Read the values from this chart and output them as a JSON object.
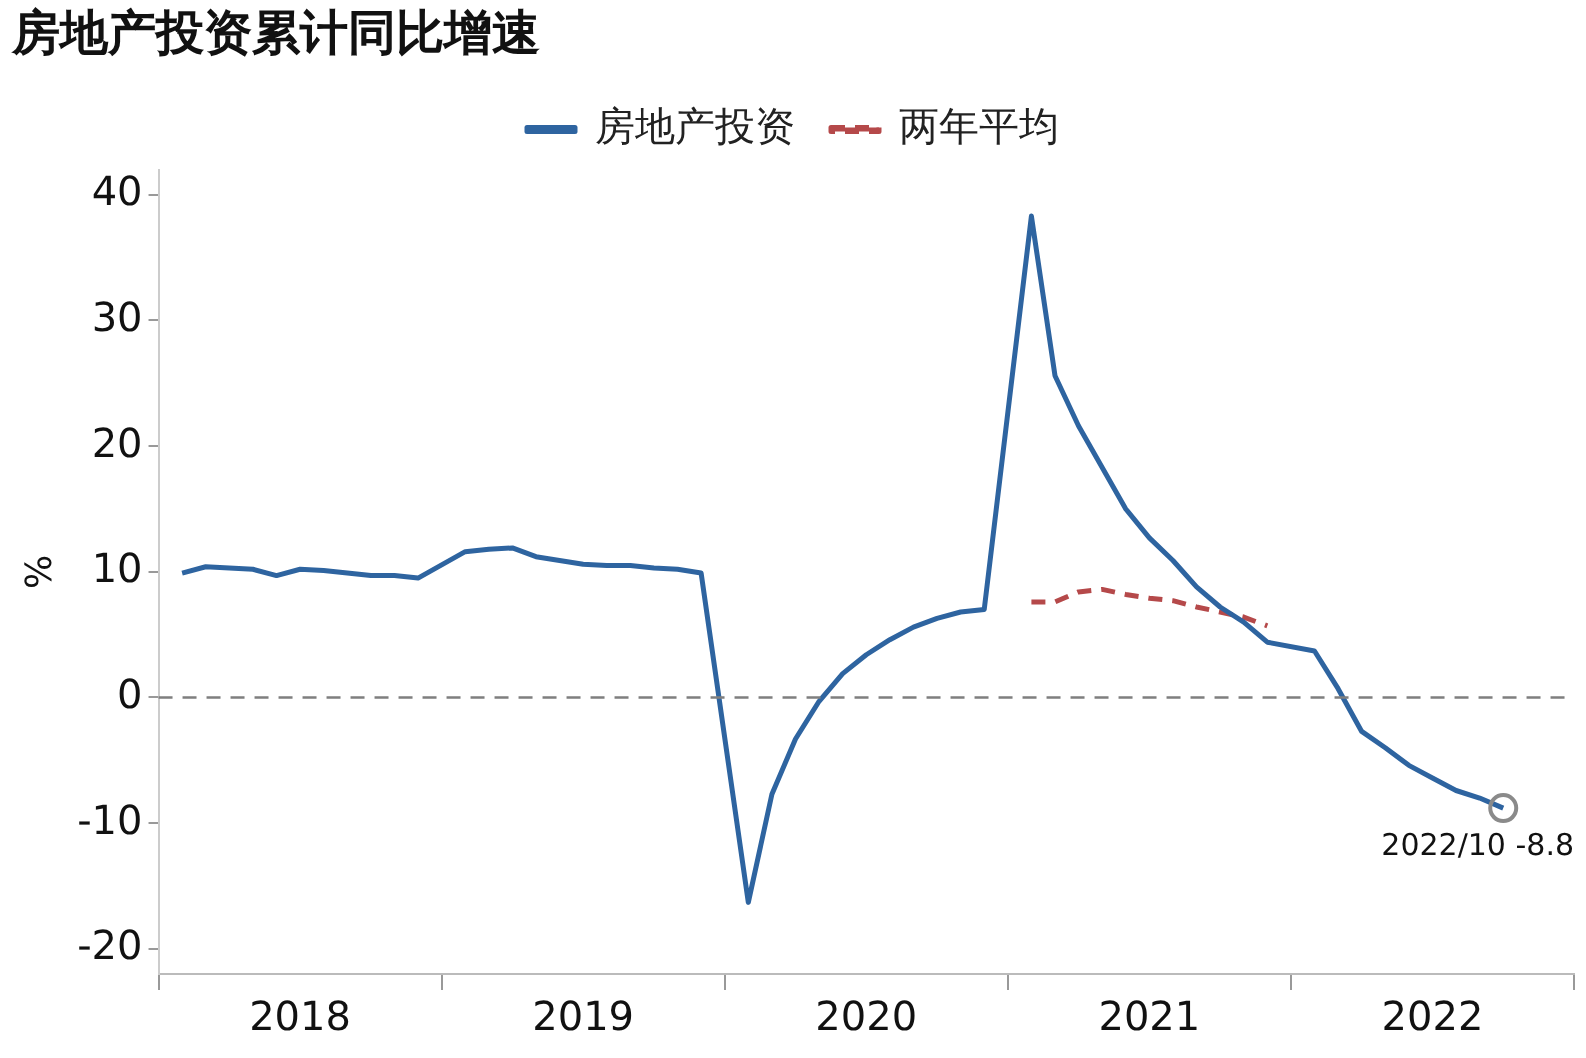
{
  "chart_data": {
    "type": "line",
    "title": "房地产投资累计同比增速",
    "ylabel": "%",
    "legend": "top",
    "marker": "none",
    "grid": false,
    "xlim": [
      "2018-01",
      "2023-01"
    ],
    "xticks": [
      {
        "value": "2018-01",
        "label": null
      },
      {
        "value": "2018-07",
        "label": "2018"
      },
      {
        "value": "2019-01",
        "label": null
      },
      {
        "value": "2019-07",
        "label": "2019"
      },
      {
        "value": "2020-01",
        "label": null
      },
      {
        "value": "2020-07",
        "label": "2020"
      },
      {
        "value": "2021-01",
        "label": null
      },
      {
        "value": "2021-07",
        "label": "2021"
      },
      {
        "value": "2022-01",
        "label": null
      },
      {
        "value": "2022-07",
        "label": "2022"
      },
      {
        "value": "2023-01",
        "label": null
      }
    ],
    "ylim": [
      -22,
      42
    ],
    "yticks": [
      -20,
      -10,
      0,
      10,
      20,
      30,
      40
    ],
    "series": [
      {
        "name": "房地产投资",
        "color": "#2e64a0",
        "line_style": "solid",
        "x": [
          "2018-02",
          "2018-03",
          "2018-04",
          "2018-05",
          "2018-06",
          "2018-07",
          "2018-08",
          "2018-09",
          "2018-10",
          "2018-11",
          "2018-12",
          "2019-02",
          "2019-03",
          "2019-04",
          "2019-05",
          "2019-06",
          "2019-07",
          "2019-08",
          "2019-09",
          "2019-10",
          "2019-11",
          "2019-12",
          "2020-02",
          "2020-03",
          "2020-04",
          "2020-05",
          "2020-06",
          "2020-07",
          "2020-08",
          "2020-09",
          "2020-10",
          "2020-11",
          "2020-12",
          "2021-02",
          "2021-03",
          "2021-04",
          "2021-05",
          "2021-06",
          "2021-07",
          "2021-08",
          "2021-09",
          "2021-10",
          "2021-11",
          "2021-12",
          "2022-02",
          "2022-03",
          "2022-04",
          "2022-05",
          "2022-06",
          "2022-07",
          "2022-08",
          "2022-09",
          "2022-10"
        ],
        "values": [
          9.9,
          10.4,
          10.3,
          10.2,
          9.7,
          10.2,
          10.1,
          9.9,
          9.7,
          9.7,
          9.5,
          11.6,
          11.8,
          11.9,
          11.2,
          10.9,
          10.6,
          10.5,
          10.5,
          10.3,
          10.2,
          9.9,
          -16.3,
          -7.7,
          -3.3,
          -0.3,
          1.9,
          3.4,
          4.6,
          5.6,
          6.3,
          6.8,
          7.0,
          38.3,
          25.6,
          21.6,
          18.3,
          15.0,
          12.7,
          10.9,
          8.8,
          7.2,
          6.0,
          4.4,
          3.7,
          0.7,
          -2.7,
          -4.0,
          -5.4,
          -6.4,
          -7.4,
          -8.0,
          -8.8
        ]
      },
      {
        "name": "两年平均",
        "color": "#b5494a",
        "line_style": "dashed",
        "x": [
          "2021-02",
          "2021-03",
          "2021-04",
          "2021-05",
          "2021-06",
          "2021-07",
          "2021-08",
          "2021-09",
          "2021-10",
          "2021-11",
          "2021-12"
        ],
        "values": [
          7.6,
          7.6,
          8.4,
          8.6,
          8.2,
          7.9,
          7.7,
          7.2,
          6.8,
          6.4,
          5.7
        ]
      }
    ],
    "ref_lines": [
      {
        "axis": "y",
        "value": 0,
        "color": "#7f7f7f",
        "line_style": "dashed"
      }
    ],
    "annotations": [
      {
        "text": "2022/10 -8.8",
        "x": "2022-10",
        "y": -8.8
      }
    ]
  }
}
